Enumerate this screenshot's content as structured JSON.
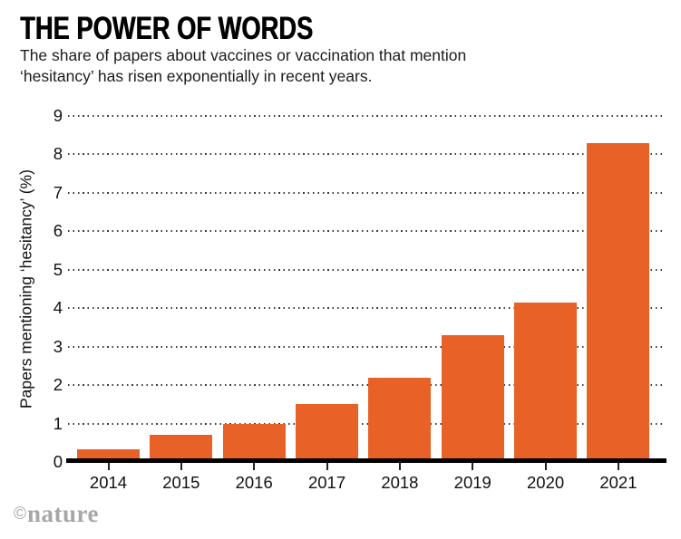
{
  "header": {
    "title": "THE POWER OF WORDS",
    "subtitle_line1": "The share of papers about vaccines or vaccination that mention",
    "subtitle_line2": "‘hesitancy’ has risen exponentially in recent years."
  },
  "chart_data": {
    "type": "bar",
    "title": "THE POWER OF WORDS",
    "categories": [
      "2014",
      "2015",
      "2016",
      "2017",
      "2018",
      "2019",
      "2020",
      "2021"
    ],
    "values": [
      0.33,
      0.7,
      1.0,
      1.5,
      2.2,
      3.3,
      4.15,
      8.3
    ],
    "xlabel": "",
    "ylabel": "Papers mentioning ‘hesitancy’ (%)",
    "ylim": [
      0,
      9
    ],
    "yticks": [
      0,
      1,
      2,
      3,
      4,
      5,
      6,
      7,
      8,
      9
    ],
    "grid": "horizontal-dotted",
    "legend": "none"
  },
  "colors": {
    "bar": "#E86126",
    "axis": "#000000",
    "grid": "#3b3b3b",
    "logo_gray": "#a7a7a7",
    "text": "#111111"
  },
  "footer": {
    "logo_symbol": "©",
    "logo_word": "nature"
  }
}
